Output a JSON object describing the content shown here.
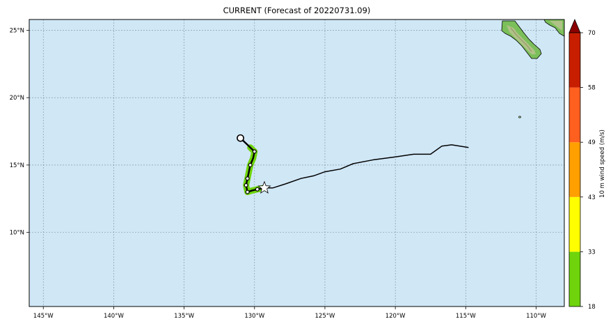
{
  "title": "CURRENT (Forecast of 20220731.09)",
  "map": {
    "lon_range": [
      -146,
      -108
    ],
    "lat_range": [
      4.5,
      25.8
    ],
    "ocean_color": "#d0e7f6",
    "grid": true,
    "lon_ticks": [
      {
        "value": -145,
        "label": "145°W"
      },
      {
        "value": -140,
        "label": "140°W"
      },
      {
        "value": -135,
        "label": "135°W"
      },
      {
        "value": -130,
        "label": "130°W"
      },
      {
        "value": -125,
        "label": "125°W"
      },
      {
        "value": -120,
        "label": "120°W"
      },
      {
        "value": -115,
        "label": "115°W"
      },
      {
        "value": -110,
        "label": "110°W"
      }
    ],
    "lat_ticks": [
      {
        "value": 25,
        "label": "25°N"
      },
      {
        "value": 20,
        "label": "20°N"
      },
      {
        "value": 15,
        "label": "15°N"
      },
      {
        "value": 10,
        "label": "10°N"
      }
    ]
  },
  "track": {
    "past": [
      [
        -114.8,
        16.3
      ],
      [
        -116.0,
        16.5
      ],
      [
        -116.7,
        16.4
      ],
      [
        -117.5,
        15.8
      ],
      [
        -118.7,
        15.8
      ],
      [
        -120.0,
        15.6
      ],
      [
        -121.5,
        15.4
      ],
      [
        -123.0,
        15.1
      ],
      [
        -123.9,
        14.7
      ],
      [
        -125.0,
        14.5
      ],
      [
        -125.8,
        14.2
      ],
      [
        -126.7,
        14.0
      ],
      [
        -127.8,
        13.6
      ],
      [
        -128.7,
        13.3
      ],
      [
        -129.3,
        13.3
      ]
    ],
    "current_position": [
      -129.3,
      13.3
    ],
    "forecast": [
      [
        -129.3,
        13.3
      ],
      [
        -129.8,
        13.2
      ],
      [
        -130.2,
        13.1
      ],
      [
        -130.5,
        13.0
      ],
      [
        -130.6,
        13.5
      ],
      [
        -130.5,
        14.0
      ],
      [
        -130.3,
        15.0
      ],
      [
        -130.1,
        15.5
      ],
      [
        -130.0,
        16.0
      ],
      [
        -130.3,
        16.3
      ],
      [
        -130.5,
        16.5
      ],
      [
        -131.0,
        17.0
      ]
    ],
    "forecast_points": [
      [
        -129.8,
        13.2
      ],
      [
        -130.5,
        13.0
      ],
      [
        -130.6,
        13.5
      ],
      [
        -130.5,
        14.0
      ],
      [
        -130.3,
        15.0
      ],
      [
        -130.0,
        16.0
      ]
    ],
    "dissipation_point": [
      -131.0,
      17.0
    ],
    "wind_swath_color": "#6fd40c"
  },
  "colorbar": {
    "label": "10 m wind speed (m/s)",
    "ticks": [
      "18",
      "33",
      "43",
      "49",
      "58",
      "70"
    ],
    "colors": [
      "#6fd40c",
      "#ffff00",
      "#ff9f00",
      "#ff5f1f",
      "#c81e00"
    ],
    "extend_color": "#8b0000"
  }
}
